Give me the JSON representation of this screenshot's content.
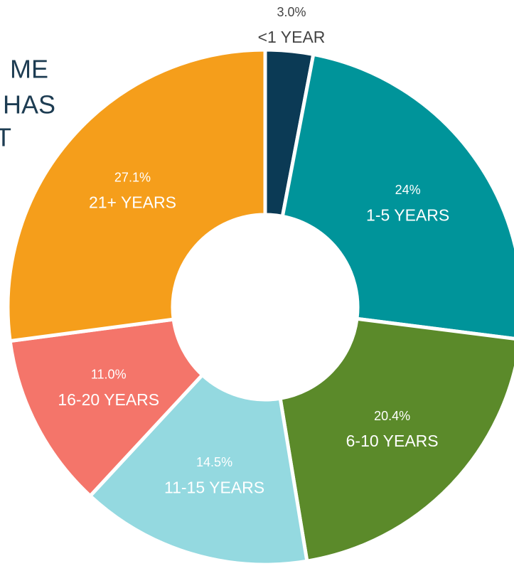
{
  "chart_data": {
    "type": "donut",
    "title_lines": [
      "ME",
      "HAS",
      "T"
    ],
    "categories": [
      "<1 YEAR",
      "1-5 YEARS",
      "6-10 YEARS",
      "11-15 YEARS",
      "16-20 YEARS",
      "21+ YEARS"
    ],
    "values": [
      3.0,
      24,
      20.4,
      14.5,
      11.0,
      27.1
    ],
    "value_labels": [
      "3.0%",
      "24%",
      "20.4%",
      "14.5%",
      "11.0%",
      "27.1%"
    ],
    "colors": [
      "#0b3a55",
      "#00949a",
      "#5b8a2a",
      "#94d9e0",
      "#f4756a",
      "#f59e1b"
    ]
  }
}
